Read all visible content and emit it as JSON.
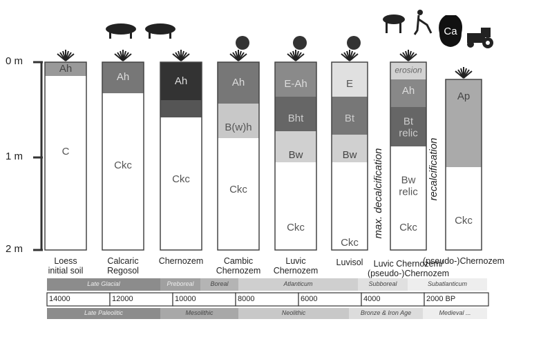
{
  "depth_labels": [
    "0 m",
    "1 m",
    "2 m"
  ],
  "profiles": [
    {
      "name": "Loess\ninitial soil",
      "horizons": [
        "Ah",
        "C"
      ]
    },
    {
      "name": "Calcaric\nRegosol",
      "horizons": [
        "Ah",
        "Ckc"
      ]
    },
    {
      "name": "Chernozem",
      "horizons": [
        "Ah",
        "Ckc"
      ]
    },
    {
      "name": "Cambic\nChernozem",
      "horizons": [
        "Ah",
        "B(w)h",
        "Ckc"
      ]
    },
    {
      "name": "Luvic\nChernozem",
      "horizons": [
        "E-Ah",
        "Bht",
        "Bw",
        "Ckc"
      ]
    },
    {
      "name": "Luvisol",
      "horizons": [
        "E",
        "Bt",
        "Bw",
        "Ckc"
      ]
    },
    {
      "name": "Luvic Chernozem/\n(pseudo-)Chernozem",
      "horizons": [
        "erosion",
        "Ah",
        "Bt\nrelic",
        "Bw\nrelic",
        "Ckc"
      ]
    },
    {
      "name": "(pseudo-)Chernozem",
      "horizons": [
        "Ap",
        "Ckc"
      ]
    }
  ],
  "annotations": [
    "max. decalcification",
    "recalcification"
  ],
  "bag_label": "Ca",
  "timeline": {
    "periods": [
      "Late Glacial",
      "Preboreal",
      "Boreal",
      "Atlanticum",
      "Subboreal",
      "Subatlanticum"
    ],
    "years": [
      "14000",
      "12000",
      "10000",
      "8000",
      "6000",
      "4000",
      "2000 BP"
    ],
    "cultures": [
      "Late Paleolitic",
      "Mesolithic",
      "Neolithic",
      "Bronze & Iron Age",
      "Medieval ..."
    ]
  }
}
